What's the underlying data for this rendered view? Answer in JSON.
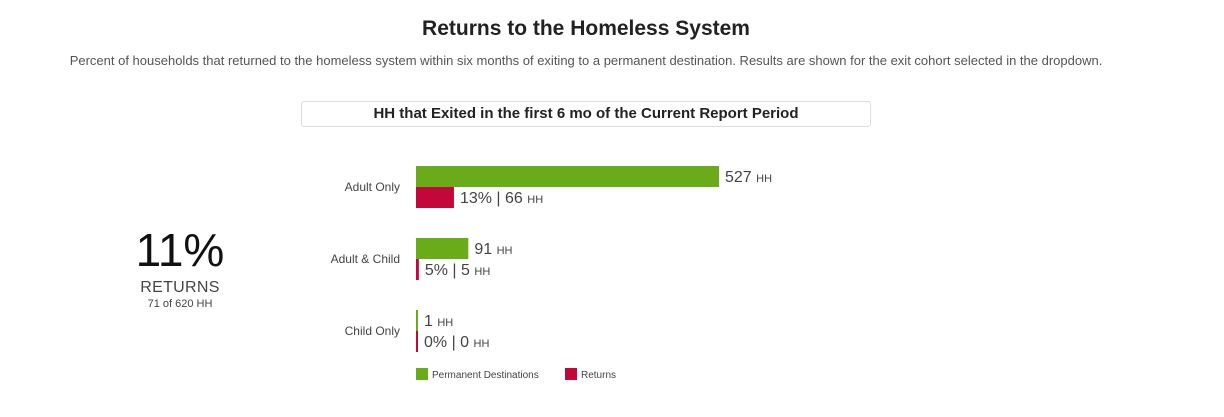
{
  "header": {
    "title": "Returns to the Homeless System",
    "subtitle": "Percent of households that returned to the homeless system within six months of exiting to a permanent destination. Results are shown for the exit cohort selected in the dropdown."
  },
  "cohort_selector": {
    "selected": "HH that Exited in the first 6 mo of the Current Report Period"
  },
  "summary": {
    "percent": "11%",
    "label": "RETURNS",
    "detail": "71 of 620 HH"
  },
  "colors": {
    "permanent": "#6aab1a",
    "returns": "#c4073a"
  },
  "chart_data": {
    "type": "bar",
    "orientation": "horizontal",
    "categories": [
      "Adult Only",
      "Adult & Child",
      "Child Only"
    ],
    "series": [
      {
        "name": "Permanent Destinations",
        "values": [
          527,
          91,
          1
        ],
        "labels": [
          "527",
          "91",
          "1"
        ],
        "unit": "HH",
        "color": "#6aab1a"
      },
      {
        "name": "Returns",
        "values": [
          66,
          5,
          0
        ],
        "labels": [
          "13% | 66",
          "5% | 5",
          "0% | 0"
        ],
        "unit": "HH",
        "color": "#c4073a"
      }
    ],
    "xlim": [
      0,
      527
    ],
    "legend": "bottom-left"
  }
}
